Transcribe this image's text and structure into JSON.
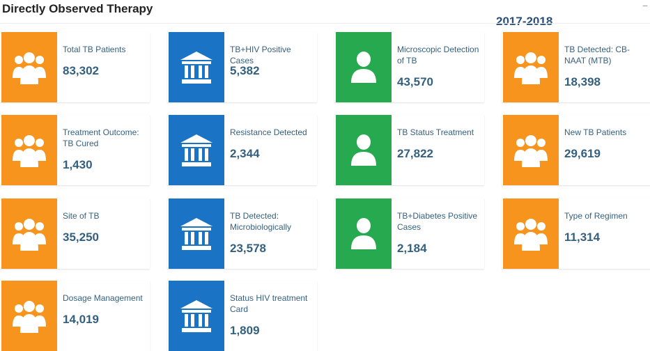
{
  "header": {
    "title": "Directly Observed Therapy",
    "year": "2017-2018",
    "collapse_symbol": "−"
  },
  "colors": {
    "orange": "#f7941d",
    "blue": "#1a73c4",
    "green": "#26a94f",
    "text": "#34607f"
  },
  "cards": [
    {
      "label": "Total TB Patients",
      "value": "83,302",
      "color": "orange",
      "icon": "people-group-icon"
    },
    {
      "label": "TB+HIV Positive Cases",
      "value": "5,382",
      "color": "blue",
      "icon": "bank-building-icon"
    },
    {
      "label": "Microscopic Detection of TB",
      "value": "43,570",
      "color": "green",
      "icon": "user-icon"
    },
    {
      "label": "TB Detected: CB-NAAT (MTB)",
      "value": "18,398",
      "color": "orange",
      "icon": "people-group-icon"
    },
    {
      "label": "Treatment Outcome: TB Cured",
      "value": "1,430",
      "color": "orange",
      "icon": "people-group-icon"
    },
    {
      "label": "Resistance Detected",
      "value": "2,344",
      "color": "blue",
      "icon": "bank-building-icon"
    },
    {
      "label": "TB Status Treatment",
      "value": "27,822",
      "color": "green",
      "icon": "user-icon"
    },
    {
      "label": "New TB Patients",
      "value": "29,619",
      "color": "orange",
      "icon": "people-group-icon"
    },
    {
      "label": "Site of TB",
      "value": "35,250",
      "color": "orange",
      "icon": "people-group-icon"
    },
    {
      "label": "TB Detected: Microbiologically",
      "value": "23,578",
      "color": "blue",
      "icon": "bank-building-icon"
    },
    {
      "label": "TB+Diabetes Positive Cases",
      "value": "2,184",
      "color": "green",
      "icon": "user-icon"
    },
    {
      "label": "Type of Regimen",
      "value": "11,314",
      "color": "orange",
      "icon": "people-group-icon"
    },
    {
      "label": "Dosage Management",
      "value": "14,019",
      "color": "orange",
      "icon": "people-group-icon"
    },
    {
      "label": "Status HIV treatment Card",
      "value": "1,809",
      "color": "blue",
      "icon": "bank-building-icon"
    }
  ]
}
